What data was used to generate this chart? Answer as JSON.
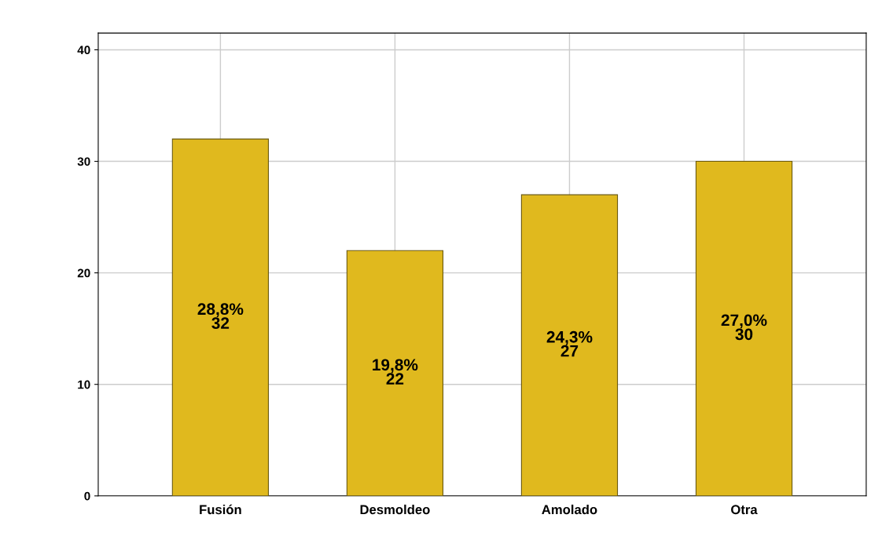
{
  "chart_data": {
    "type": "bar",
    "categories": [
      "Fusión",
      "Desmoldeo",
      "Amolado",
      "Otra"
    ],
    "values": [
      32,
      22,
      27,
      30
    ],
    "value_labels": [
      "28,8%\n32",
      "19,8%\n22",
      "24,3%\n27",
      "27,0%\n30"
    ],
    "color": "#e0b91e",
    "ylim": [
      0,
      41.5
    ],
    "yticks": [
      0,
      10,
      20,
      30,
      40
    ],
    "grid": true
  }
}
